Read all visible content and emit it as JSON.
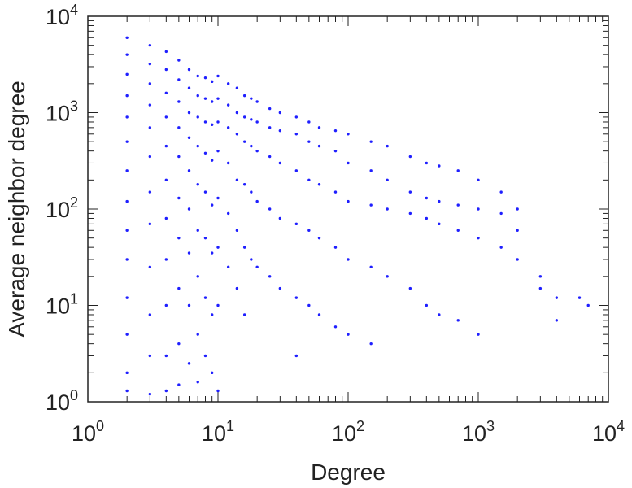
{
  "chart_data": {
    "type": "scatter",
    "title": "",
    "xlabel": "Degree",
    "ylabel": "Average neighbor degree",
    "xscale": "log",
    "yscale": "log",
    "xlim": [
      1,
      10000
    ],
    "ylim": [
      1,
      10000
    ],
    "grid": false,
    "legend": "none",
    "x_ticks": [
      {
        "base": "10",
        "exp": "0"
      },
      {
        "base": "10",
        "exp": "1"
      },
      {
        "base": "10",
        "exp": "2"
      },
      {
        "base": "10",
        "exp": "3"
      },
      {
        "base": "10",
        "exp": "4"
      }
    ],
    "y_ticks": [
      {
        "base": "10",
        "exp": "0"
      },
      {
        "base": "10",
        "exp": "1"
      },
      {
        "base": "10",
        "exp": "2"
      },
      {
        "base": "10",
        "exp": "3"
      },
      {
        "base": "10",
        "exp": "4"
      }
    ],
    "series": [
      {
        "color": "#1f1fff",
        "points": [
          [
            2,
            6000
          ],
          [
            2,
            4000
          ],
          [
            2,
            2500
          ],
          [
            2,
            1500
          ],
          [
            2,
            900
          ],
          [
            2,
            500
          ],
          [
            2,
            250
          ],
          [
            2,
            120
          ],
          [
            2,
            60
          ],
          [
            2,
            30
          ],
          [
            2,
            12
          ],
          [
            2,
            5
          ],
          [
            2,
            2
          ],
          [
            2,
            1.3
          ],
          [
            3,
            5000
          ],
          [
            3,
            3200
          ],
          [
            3,
            2000
          ],
          [
            3,
            1200
          ],
          [
            3,
            700
          ],
          [
            3,
            350
          ],
          [
            3,
            150
          ],
          [
            3,
            70
          ],
          [
            3,
            25
          ],
          [
            3,
            8
          ],
          [
            3,
            3
          ],
          [
            3,
            1.2
          ],
          [
            4,
            4300
          ],
          [
            4,
            2800
          ],
          [
            4,
            1600
          ],
          [
            4,
            900
          ],
          [
            4,
            450
          ],
          [
            4,
            200
          ],
          [
            4,
            80
          ],
          [
            4,
            30
          ],
          [
            4,
            10
          ],
          [
            4,
            3
          ],
          [
            4,
            1.3
          ],
          [
            5,
            3500
          ],
          [
            5,
            2200
          ],
          [
            5,
            1300
          ],
          [
            5,
            700
          ],
          [
            5,
            350
          ],
          [
            5,
            130
          ],
          [
            5,
            50
          ],
          [
            5,
            15
          ],
          [
            5,
            4
          ],
          [
            5,
            1.5
          ],
          [
            6,
            2800
          ],
          [
            6,
            1800
          ],
          [
            6,
            1000
          ],
          [
            6,
            550
          ],
          [
            6,
            250
          ],
          [
            6,
            100
          ],
          [
            6,
            35
          ],
          [
            6,
            10
          ],
          [
            6,
            2.5
          ],
          [
            7,
            2400
          ],
          [
            7,
            1500
          ],
          [
            7,
            900
          ],
          [
            7,
            450
          ],
          [
            7,
            180
          ],
          [
            7,
            60
          ],
          [
            7,
            20
          ],
          [
            7,
            5
          ],
          [
            7,
            1.6
          ],
          [
            8,
            2300
          ],
          [
            8,
            1400
          ],
          [
            8,
            800
          ],
          [
            8,
            380
          ],
          [
            8,
            150
          ],
          [
            8,
            50
          ],
          [
            8,
            12
          ],
          [
            8,
            3
          ],
          [
            9,
            2100
          ],
          [
            9,
            1300
          ],
          [
            9,
            750
          ],
          [
            9,
            320
          ],
          [
            9,
            110
          ],
          [
            9,
            35
          ],
          [
            9,
            8
          ],
          [
            9,
            2
          ],
          [
            10,
            2400
          ],
          [
            10,
            1400
          ],
          [
            10,
            800
          ],
          [
            10,
            400
          ],
          [
            10,
            130
          ],
          [
            10,
            40
          ],
          [
            10,
            10
          ],
          [
            10,
            1.3
          ],
          [
            12,
            2000
          ],
          [
            12,
            1200
          ],
          [
            12,
            700
          ],
          [
            12,
            300
          ],
          [
            12,
            90
          ],
          [
            12,
            25
          ],
          [
            14,
            1800
          ],
          [
            14,
            1000
          ],
          [
            14,
            600
          ],
          [
            14,
            200
          ],
          [
            14,
            60
          ],
          [
            14,
            15
          ],
          [
            16,
            1500
          ],
          [
            16,
            900
          ],
          [
            16,
            500
          ],
          [
            16,
            180
          ],
          [
            16,
            40
          ],
          [
            16,
            8
          ],
          [
            18,
            1400
          ],
          [
            18,
            850
          ],
          [
            18,
            450
          ],
          [
            18,
            150
          ],
          [
            18,
            30
          ],
          [
            20,
            1300
          ],
          [
            20,
            800
          ],
          [
            20,
            400
          ],
          [
            20,
            120
          ],
          [
            20,
            25
          ],
          [
            25,
            1100
          ],
          [
            25,
            700
          ],
          [
            25,
            350
          ],
          [
            25,
            100
          ],
          [
            25,
            20
          ],
          [
            30,
            1000
          ],
          [
            30,
            650
          ],
          [
            30,
            300
          ],
          [
            30,
            80
          ],
          [
            30,
            15
          ],
          [
            40,
            900
          ],
          [
            40,
            600
          ],
          [
            40,
            250
          ],
          [
            40,
            70
          ],
          [
            40,
            12
          ],
          [
            40,
            3
          ],
          [
            50,
            800
          ],
          [
            50,
            500
          ],
          [
            50,
            200
          ],
          [
            50,
            60
          ],
          [
            50,
            10
          ],
          [
            60,
            700
          ],
          [
            60,
            450
          ],
          [
            60,
            180
          ],
          [
            60,
            50
          ],
          [
            60,
            8
          ],
          [
            80,
            650
          ],
          [
            80,
            400
          ],
          [
            80,
            150
          ],
          [
            80,
            40
          ],
          [
            80,
            6
          ],
          [
            100,
            600
          ],
          [
            100,
            300
          ],
          [
            100,
            120
          ],
          [
            100,
            30
          ],
          [
            100,
            5
          ],
          [
            150,
            500
          ],
          [
            150,
            250
          ],
          [
            150,
            110
          ],
          [
            150,
            25
          ],
          [
            150,
            4
          ],
          [
            200,
            450
          ],
          [
            200,
            200
          ],
          [
            200,
            100
          ],
          [
            200,
            20
          ],
          [
            300,
            350
          ],
          [
            300,
            150
          ],
          [
            300,
            90
          ],
          [
            300,
            15
          ],
          [
            400,
            300
          ],
          [
            400,
            130
          ],
          [
            400,
            80
          ],
          [
            400,
            10
          ],
          [
            500,
            280
          ],
          [
            500,
            120
          ],
          [
            500,
            70
          ],
          [
            500,
            8
          ],
          [
            700,
            250
          ],
          [
            700,
            110
          ],
          [
            700,
            60
          ],
          [
            700,
            7
          ],
          [
            1000,
            200
          ],
          [
            1000,
            100
          ],
          [
            1000,
            50
          ],
          [
            1000,
            5
          ],
          [
            1500,
            150
          ],
          [
            1500,
            90
          ],
          [
            1500,
            40
          ],
          [
            2000,
            100
          ],
          [
            2000,
            60
          ],
          [
            2000,
            30
          ],
          [
            3000,
            20
          ],
          [
            3000,
            15
          ],
          [
            4000,
            12
          ],
          [
            4000,
            7
          ],
          [
            6000,
            12
          ],
          [
            7000,
            10
          ]
        ]
      }
    ]
  }
}
